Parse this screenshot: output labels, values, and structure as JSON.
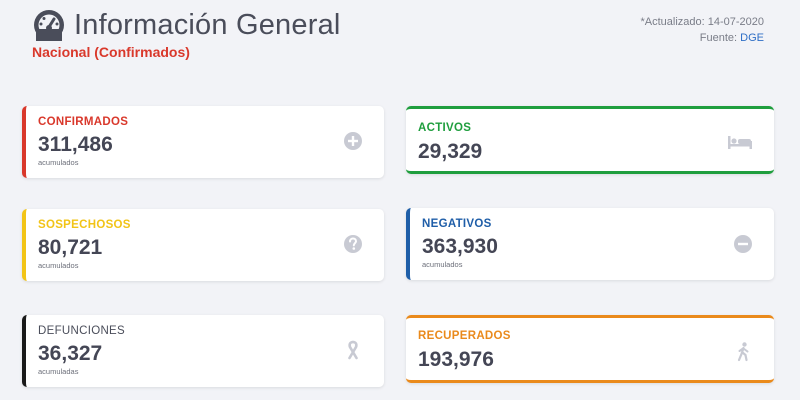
{
  "header": {
    "title": "Información General",
    "subtitle": "Nacional (Confirmados)",
    "updated": "*Actualizado: 14-07-2020",
    "source_prefix": "Fuente: ",
    "source_link": "DGE"
  },
  "colors": {
    "confirmados": "#d9382b",
    "activos": "#1f9e3e",
    "sospechosos": "#f2c417",
    "negativos": "#1f5ea8",
    "defunciones": "#1a1a1a",
    "recuperados": "#ea8a1c",
    "icon": "#c8cad3"
  },
  "cards": {
    "confirmados": {
      "label": "CONFIRMADOS",
      "value": "311,486",
      "note": "acumulados",
      "icon": "plus-circle-icon"
    },
    "activos": {
      "label": "ACTIVOS",
      "value": "29,329",
      "icon": "bed-icon"
    },
    "sospechosos": {
      "label": "SOSPECHOSOS",
      "value": "80,721",
      "note": "acumulados",
      "icon": "question-circle-icon"
    },
    "negativos": {
      "label": "NEGATIVOS",
      "value": "363,930",
      "note": "acumulados",
      "icon": "minus-circle-icon"
    },
    "defunciones": {
      "label": "DEFUNCIONES",
      "value": "36,327",
      "note": "acumuladas",
      "icon": "ribbon-icon"
    },
    "recuperados": {
      "label": "RECUPERADOS",
      "value": "193,976",
      "icon": "walking-person-icon"
    }
  }
}
